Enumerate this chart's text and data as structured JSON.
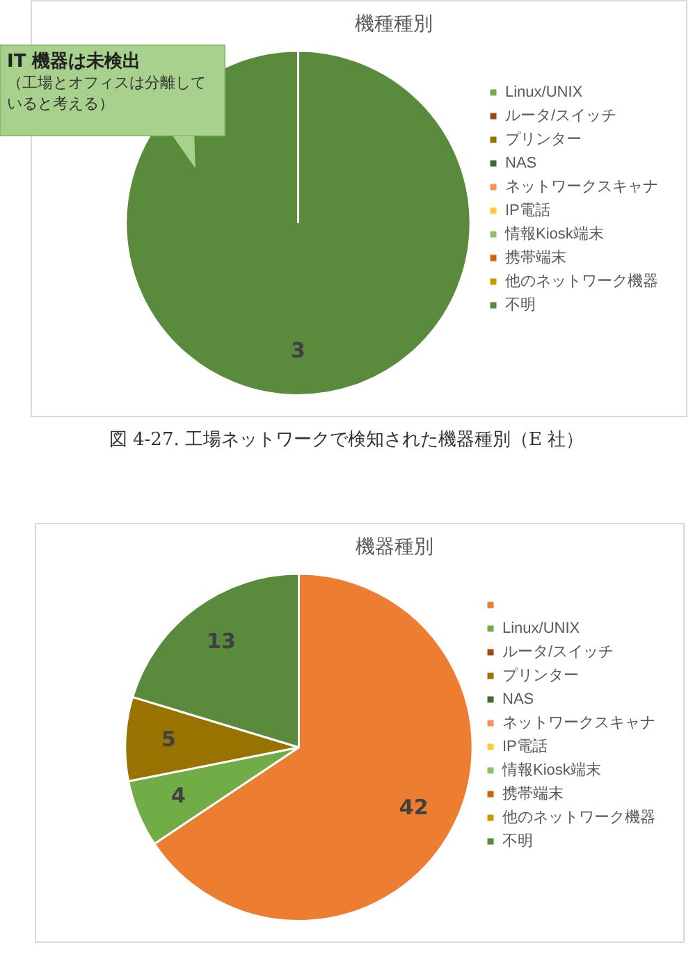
{
  "chart_data": [
    {
      "type": "pie",
      "title": "機種種別",
      "categories": [
        null,
        null,
        "Linux/UNIX",
        "ルータ/スイッチ",
        "プリンター",
        "NAS",
        "ネットワークスキャナ",
        "IP電話",
        "情報Kiosk端末",
        "携帯端末",
        "他のネットワーク機器",
        "不明"
      ],
      "values": [
        0,
        0,
        0,
        0,
        0,
        0,
        0,
        0,
        0,
        0,
        0,
        3
      ],
      "colors": [
        "#ed7d31",
        "#ffc000",
        "#70ad47",
        "#9e480e",
        "#997300",
        "#43682b",
        "#f1975a",
        "#ffcd33",
        "#8cc168",
        "#d26012",
        "#cc9a00",
        "#5a8a3c"
      ],
      "value_labels": [
        null,
        null,
        null,
        null,
        null,
        null,
        null,
        null,
        null,
        null,
        null,
        "3"
      ],
      "legend": "right",
      "annotations": [
        "IT 機器は未検出",
        "（工場とオフィスは分離していると考える）",
        "図 4-27. 工場ネットワークで検知された機器種別（E 社）"
      ]
    },
    {
      "type": "pie",
      "title": "機器種別",
      "categories": [
        null,
        null,
        "Linux/UNIX",
        "ルータ/スイッチ",
        "プリンター",
        "NAS",
        "ネットワークスキャナ",
        "IP電話",
        "情報Kiosk端末",
        "携帯端末",
        "他のネットワーク機器",
        "不明"
      ],
      "values": [
        42,
        0,
        4,
        0,
        5,
        0,
        0,
        0,
        0,
        0,
        0,
        13
      ],
      "colors": [
        "#ed7d31",
        "#ffc000",
        "#70ad47",
        "#9e480e",
        "#997300",
        "#43682b",
        "#f1975a",
        "#ffcd33",
        "#8cc168",
        "#d26012",
        "#cc9a00",
        "#5a8a3c"
      ],
      "value_labels": [
        "42",
        null,
        "4",
        null,
        "5",
        null,
        null,
        null,
        null,
        null,
        null,
        "13"
      ],
      "legend": "right"
    }
  ]
}
